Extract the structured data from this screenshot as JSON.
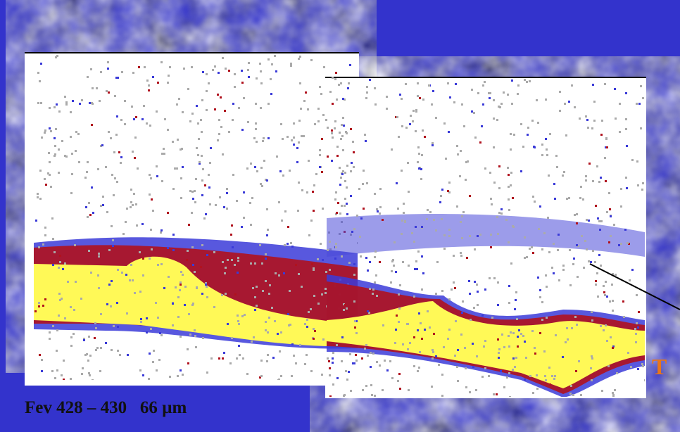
{
  "slide": {
    "caption": "Fev 428 – 430   66 µm",
    "side_label": "T"
  }
}
